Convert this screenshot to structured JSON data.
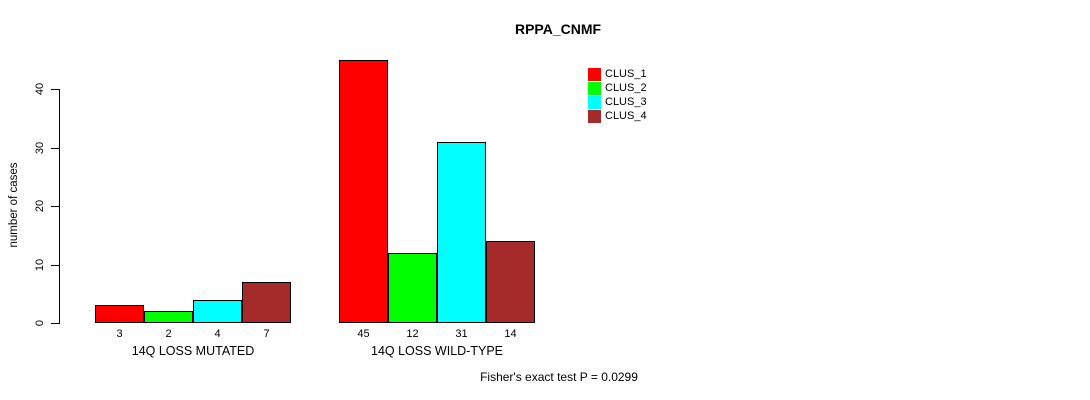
{
  "page": {
    "background": "#ffffff",
    "text_color": "#000000"
  },
  "chart_data": {
    "type": "bar",
    "title": "RPPA_CNMF",
    "xlabel": "",
    "ylabel": "number of cases",
    "ylim": [
      0,
      45
    ],
    "yticks": [
      0,
      10,
      20,
      30,
      40
    ],
    "grid": false,
    "legend_position": "top-right",
    "categories": [
      "14Q LOSS MUTATED",
      "14Q LOSS WILD-TYPE"
    ],
    "series": [
      {
        "name": "CLUS_1",
        "color": "#ff0000",
        "values": [
          3,
          45
        ]
      },
      {
        "name": "CLUS_2",
        "color": "#00ff00",
        "values": [
          2,
          12
        ]
      },
      {
        "name": "CLUS_3",
        "color": "#00ffff",
        "values": [
          4,
          31
        ]
      },
      {
        "name": "CLUS_4",
        "color": "#a52a2a",
        "values": [
          7,
          14
        ]
      }
    ],
    "bar_value_labels": [
      [
        3,
        2,
        4,
        7
      ],
      [
        45,
        12,
        31,
        14
      ]
    ],
    "annotation": "Fisher's exact test P = 0.0299",
    "bar_border_color": "#000000"
  }
}
